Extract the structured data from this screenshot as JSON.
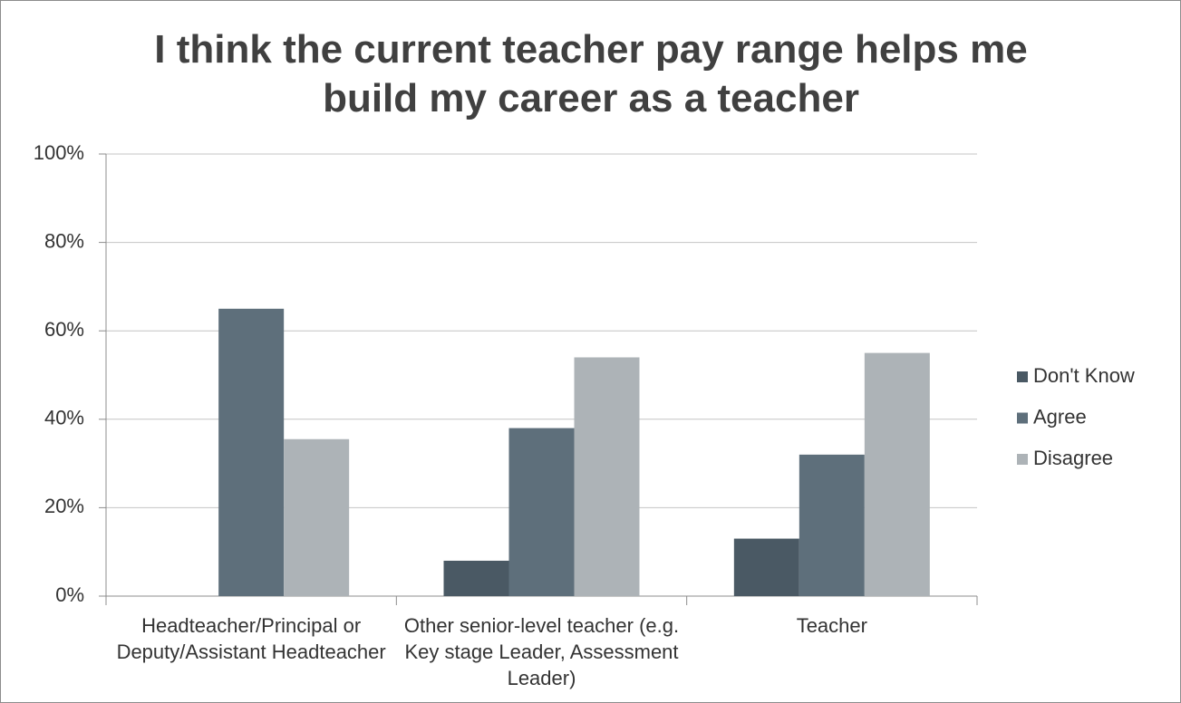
{
  "chart_data": {
    "type": "bar",
    "title": "I think the current teacher pay range helps me build my career as a teacher",
    "categories": [
      "Headteacher/Principal or Deputy/Assistant Headteacher",
      "Other senior-level teacher (e.g. Key stage Leader, Assessment Leader)",
      "Teacher"
    ],
    "series": [
      {
        "name": "Don't Know",
        "color": "#4a5964",
        "values": [
          0,
          8,
          13
        ]
      },
      {
        "name": "Agree",
        "color": "#5e6f7b",
        "values": [
          65,
          38,
          32
        ]
      },
      {
        "name": "Disagree",
        "color": "#adb3b7",
        "values": [
          35.5,
          54,
          55
        ]
      }
    ],
    "ylim": [
      0,
      100
    ],
    "yticks": [
      {
        "value": 0,
        "label": "0%"
      },
      {
        "value": 20,
        "label": "20%"
      },
      {
        "value": 40,
        "label": "40%"
      },
      {
        "value": 60,
        "label": "60%"
      },
      {
        "value": 80,
        "label": "80%"
      },
      {
        "value": 100,
        "label": "100%"
      }
    ],
    "grid": true,
    "legend": "right"
  }
}
